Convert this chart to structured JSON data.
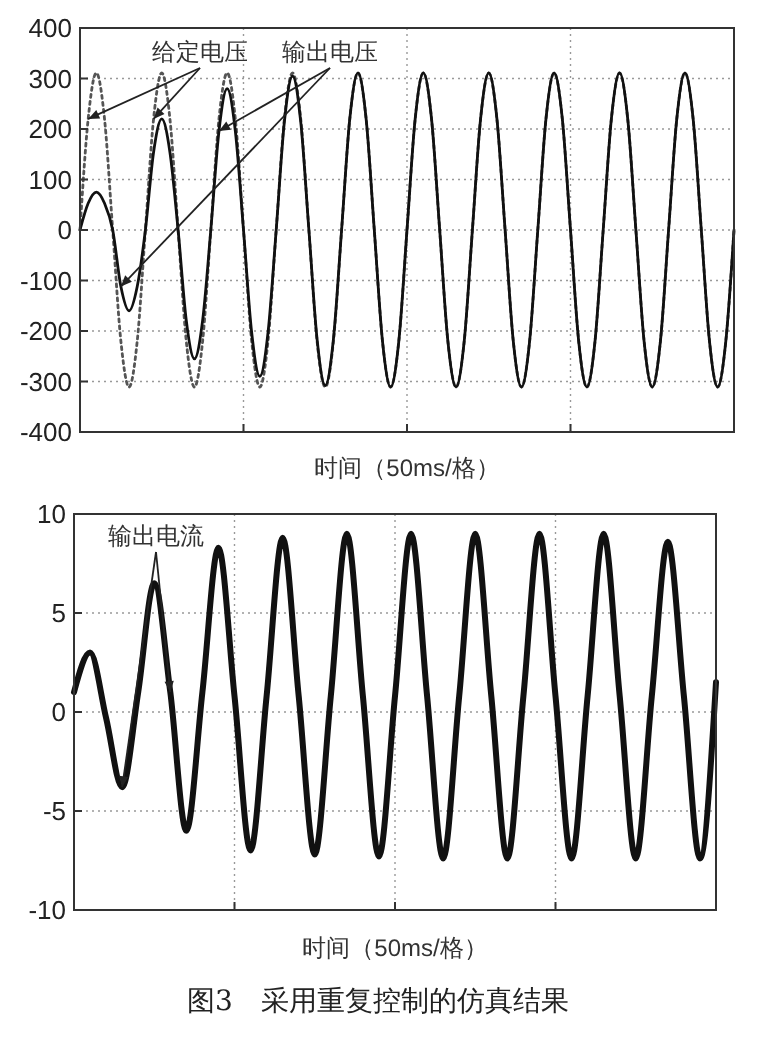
{
  "chart_data": [
    {
      "type": "line",
      "xlabel": "时间（50ms/格）",
      "categories": [
        null,
        null,
        null,
        null,
        null,
        null,
        null,
        null,
        null,
        null,
        null,
        null,
        null,
        null,
        null,
        null,
        null,
        null,
        null,
        null,
        null,
        null,
        null,
        null,
        null,
        null,
        null,
        null,
        null,
        null,
        null,
        null,
        null,
        null,
        null,
        null,
        null,
        null,
        null,
        null,
        null,
        null,
        null,
        null,
        null,
        null,
        null,
        null,
        null,
        null,
        null,
        null,
        null,
        null,
        null,
        null,
        null,
        null,
        null,
        null,
        null,
        null,
        null,
        null,
        null,
        null,
        null,
        null,
        null,
        null,
        null,
        null,
        null,
        null,
        null,
        null,
        null,
        null,
        null,
        null,
        null
      ],
      "series": [
        {
          "name": "给定电压",
          "color": "#555555",
          "line_style": "dotted",
          "values": [
            0,
            220,
            311,
            220,
            0,
            -220,
            -311,
            -220,
            0,
            220,
            311,
            220,
            0,
            -220,
            -311,
            -220,
            0,
            220,
            311,
            220,
            0,
            -220,
            -311,
            -220,
            0,
            220,
            311,
            220,
            0,
            -220,
            -311,
            -220,
            0,
            220,
            311,
            220,
            0,
            -220,
            -311,
            -220,
            0,
            220,
            311,
            220,
            0,
            -220,
            -311,
            -220,
            0,
            220,
            311,
            220,
            0,
            -220,
            -311,
            -220,
            0,
            220,
            311,
            220,
            0,
            -220,
            -311,
            -220,
            0,
            220,
            311,
            220,
            0,
            -220,
            -311,
            -220,
            0,
            220,
            311,
            220,
            0,
            -220,
            -311,
            -220,
            0
          ]
        },
        {
          "name": "输出电压",
          "color": "#111111",
          "line_style": "solid",
          "values": [
            0,
            53,
            75,
            53,
            0,
            -112,
            -160,
            -112,
            0,
            154,
            220,
            154,
            0,
            -179,
            -255,
            -179,
            0,
            196,
            280,
            196,
            0,
            -203,
            -290,
            -203,
            0,
            214,
            305,
            214,
            0,
            -216,
            -308,
            -216,
            0,
            220,
            311,
            220,
            0,
            -220,
            -311,
            -220,
            0,
            220,
            311,
            220,
            0,
            -220,
            -311,
            -220,
            0,
            220,
            311,
            220,
            0,
            -220,
            -311,
            -220,
            0,
            220,
            311,
            220,
            0,
            -220,
            -311,
            -220,
            0,
            220,
            311,
            220,
            0,
            -220,
            -311,
            -220,
            0,
            220,
            311,
            220,
            0,
            -220,
            -311,
            -220,
            0
          ]
        }
      ],
      "ylim": [
        -400,
        400
      ],
      "yticks": [
        -400,
        -300,
        -200,
        -100,
        0,
        100,
        200,
        300,
        400
      ],
      "grid": true,
      "tick_labels": "y"
    },
    {
      "type": "line",
      "xlabel": "时间（50ms/格）",
      "categories": [
        null,
        null,
        null,
        null,
        null,
        null,
        null,
        null,
        null,
        null,
        null,
        null,
        null,
        null,
        null,
        null,
        null,
        null,
        null,
        null,
        null,
        null,
        null,
        null,
        null,
        null,
        null,
        null,
        null,
        null,
        null,
        null,
        null,
        null,
        null,
        null,
        null,
        null,
        null,
        null,
        null
      ],
      "series": [
        {
          "name": "输出电流",
          "color": "#111111",
          "line_style": "solid",
          "values": [
            1,
            3,
            -0.3,
            -3.8,
            1,
            6.5,
            1,
            -6,
            1,
            8.3,
            0.8,
            -7,
            0.8,
            8.8,
            0.8,
            -7.2,
            0.8,
            9,
            0.8,
            -7.3,
            0.8,
            9,
            0.8,
            -7.4,
            0.8,
            9,
            0.8,
            -7.4,
            0.8,
            9,
            0.8,
            -7.4,
            0.8,
            9,
            0.8,
            -7.4,
            0.8,
            8.6,
            0.8,
            -7.4,
            1.5
          ]
        }
      ],
      "ylim": [
        -10,
        10
      ],
      "yticks": [
        -10,
        -5,
        0,
        5,
        10
      ],
      "grid": true,
      "tick_labels": "y",
      "annotations": [
        "图3　采用重复控制的仿真结果"
      ]
    }
  ]
}
